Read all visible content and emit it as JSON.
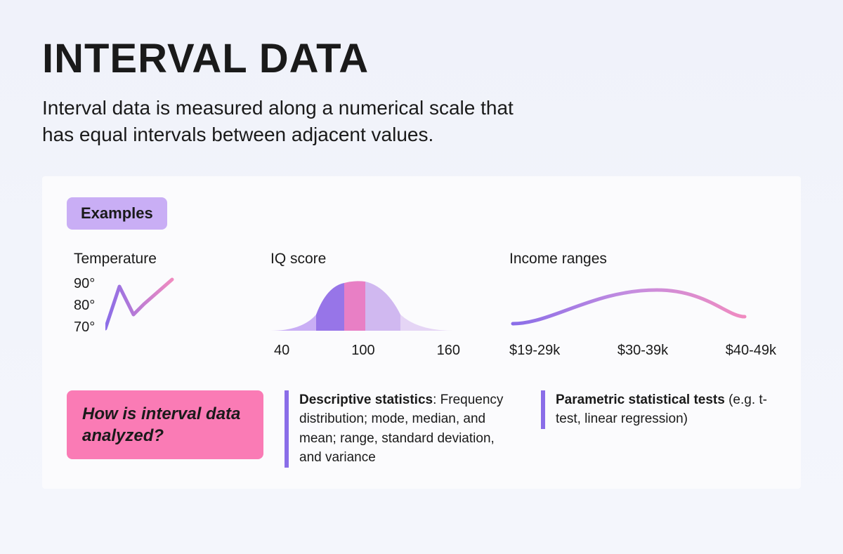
{
  "header": {
    "title": "INTERVAL DATA",
    "subtitle": "Interval data is measured along a numerical scale that has equal intervals between adjacent values."
  },
  "examples": {
    "badge_label": "Examples",
    "badge_bg": "#c9aef5",
    "badge_text_color": "#1a1a1a",
    "temperature": {
      "label": "Temperature",
      "y_labels": [
        "90°",
        "80°",
        "70°"
      ],
      "line_points": [
        [
          0,
          75
        ],
        [
          20,
          15
        ],
        [
          40,
          55
        ],
        [
          55,
          40
        ],
        [
          95,
          5
        ]
      ],
      "stroke_gradient": [
        "#8a6de8",
        "#f08bc0"
      ],
      "stroke_width": 5
    },
    "iq": {
      "label": "IQ score",
      "x_labels": [
        "40",
        "100",
        "160"
      ],
      "curve_colors": {
        "left_tail": "#c9aef5",
        "left_mid": "#9775e8",
        "center": "#e87fc5",
        "right_mid": "#d0b8f0",
        "right_tail": "#e5d5f5"
      }
    },
    "income": {
      "label": "Income ranges",
      "x_labels": [
        "$19-29k",
        "$30-39k",
        "$40-49k"
      ],
      "stroke_gradient": [
        "#8a6de8",
        "#c48de0",
        "#f08bc0"
      ],
      "stroke_width": 5
    }
  },
  "analysis": {
    "badge_label": "How is interval data analyzed?",
    "badge_bg": "#fa7bb5",
    "badge_text_color": "#1a1a1a",
    "descriptive": {
      "border_color": "#8a6de8",
      "bold": "Descriptive statistics",
      "text": ": Frequency distribution; mode, median, and mean; range, standard deviation, and variance"
    },
    "parametric": {
      "border_color": "#8a6de8",
      "bold": "Parametric statistical tests",
      "text": " (e.g. t-test, linear regression)"
    }
  },
  "colors": {
    "page_bg": "#f0f2fa",
    "box_bg": "#fbfbfd",
    "text": "#1a1a1a"
  }
}
